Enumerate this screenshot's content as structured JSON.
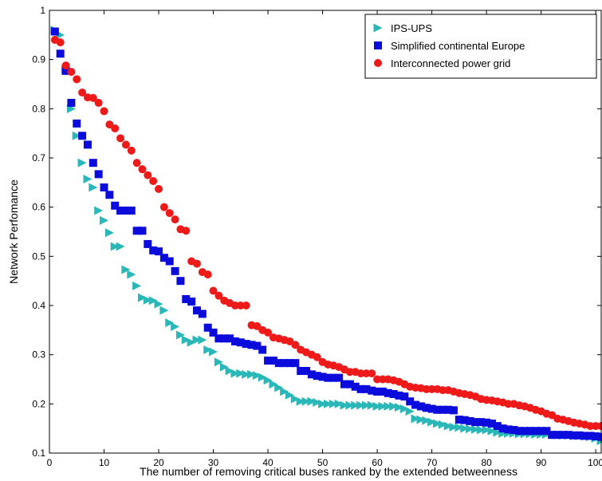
{
  "chart_data": {
    "type": "scatter",
    "title": "",
    "xlabel": "The number of removing critical buses ranked by the extended betweenness",
    "ylabel": "Network Perfomance",
    "xlim": [
      0,
      101
    ],
    "ylim": [
      0.1,
      1.0
    ],
    "xticks": [
      0,
      10,
      20,
      30,
      40,
      50,
      60,
      70,
      80,
      90,
      100
    ],
    "yticks": [
      0.1,
      0.2,
      0.3,
      0.4,
      0.5,
      0.6,
      0.7,
      0.8,
      0.9,
      1.0
    ],
    "xtick_labels": [
      "0",
      "10",
      "20",
      "30",
      "40",
      "50",
      "60",
      "70",
      "80",
      "90",
      "100"
    ],
    "ytick_labels": [
      "0.1",
      "0.2",
      "0.3",
      "0.4",
      "0.5",
      "0.6",
      "0.7",
      "0.8",
      "0.9",
      "1"
    ],
    "grid": false,
    "legend_position": "top-right",
    "series": [
      {
        "name": "IPS-UPS",
        "marker": "triangle-right",
        "color": "#2ab7b7",
        "x": [
          1,
          2,
          3,
          4,
          5,
          6,
          7,
          8,
          9,
          10,
          11,
          12,
          13,
          14,
          15,
          16,
          17,
          18,
          19,
          20,
          21,
          22,
          23,
          24,
          25,
          26,
          27,
          28,
          29,
          30,
          31,
          32,
          33,
          34,
          35,
          36,
          37,
          38,
          39,
          40,
          41,
          42,
          43,
          44,
          45,
          46,
          47,
          48,
          49,
          50,
          51,
          52,
          53,
          54,
          55,
          56,
          57,
          58,
          59,
          60,
          61,
          62,
          63,
          64,
          65,
          66,
          67,
          68,
          69,
          70,
          71,
          72,
          73,
          74,
          75,
          76,
          77,
          78,
          79,
          80,
          81,
          82,
          83,
          84,
          85,
          86,
          87,
          88,
          89,
          90,
          91,
          92,
          93,
          94,
          95,
          96,
          97,
          98,
          99,
          100,
          101
        ],
        "y": [
          0.96,
          0.95,
          0.88,
          0.8,
          0.745,
          0.69,
          0.657,
          0.64,
          0.593,
          0.573,
          0.548,
          0.52,
          0.52,
          0.473,
          0.463,
          0.44,
          0.416,
          0.411,
          0.41,
          0.403,
          0.39,
          0.365,
          0.357,
          0.34,
          0.33,
          0.325,
          0.33,
          0.33,
          0.31,
          0.306,
          0.285,
          0.275,
          0.267,
          0.262,
          0.262,
          0.26,
          0.26,
          0.258,
          0.254,
          0.248,
          0.24,
          0.233,
          0.225,
          0.218,
          0.21,
          0.205,
          0.205,
          0.205,
          0.203,
          0.2,
          0.2,
          0.2,
          0.2,
          0.197,
          0.197,
          0.197,
          0.197,
          0.197,
          0.197,
          0.195,
          0.195,
          0.195,
          0.195,
          0.193,
          0.19,
          0.185,
          0.17,
          0.168,
          0.166,
          0.163,
          0.16,
          0.158,
          0.155,
          0.153,
          0.152,
          0.15,
          0.149,
          0.148,
          0.147,
          0.147,
          0.145,
          0.142,
          0.14,
          0.14,
          0.14,
          0.139,
          0.139,
          0.139,
          0.138,
          0.138,
          0.138,
          0.138,
          0.137,
          0.136,
          0.136,
          0.135,
          0.135,
          0.134,
          0.133,
          0.13,
          0.125
        ]
      },
      {
        "name": "Simplified continental Europe",
        "marker": "square",
        "color": "#0b0bdc",
        "x": [
          1,
          2,
          3,
          4,
          5,
          6,
          7,
          8,
          9,
          10,
          11,
          12,
          13,
          14,
          15,
          16,
          17,
          18,
          19,
          20,
          21,
          22,
          23,
          24,
          25,
          26,
          27,
          28,
          29,
          30,
          31,
          32,
          33,
          34,
          35,
          36,
          37,
          38,
          39,
          40,
          41,
          42,
          43,
          44,
          45,
          46,
          47,
          48,
          49,
          50,
          51,
          52,
          53,
          54,
          55,
          56,
          57,
          58,
          59,
          60,
          61,
          62,
          63,
          64,
          65,
          66,
          67,
          68,
          69,
          70,
          71,
          72,
          73,
          74,
          75,
          76,
          77,
          78,
          79,
          80,
          81,
          82,
          83,
          84,
          85,
          86,
          87,
          88,
          89,
          90,
          91,
          92,
          93,
          94,
          95,
          96,
          97,
          98,
          99,
          100,
          101
        ],
        "y": [
          0.957,
          0.912,
          0.877,
          0.812,
          0.77,
          0.745,
          0.727,
          0.69,
          0.667,
          0.64,
          0.625,
          0.603,
          0.593,
          0.593,
          0.593,
          0.552,
          0.552,
          0.525,
          0.512,
          0.51,
          0.497,
          0.49,
          0.47,
          0.45,
          0.413,
          0.408,
          0.39,
          0.383,
          0.355,
          0.345,
          0.333,
          0.333,
          0.333,
          0.327,
          0.325,
          0.322,
          0.32,
          0.318,
          0.31,
          0.288,
          0.288,
          0.283,
          0.283,
          0.283,
          0.283,
          0.267,
          0.267,
          0.26,
          0.257,
          0.255,
          0.253,
          0.253,
          0.253,
          0.24,
          0.24,
          0.235,
          0.23,
          0.23,
          0.227,
          0.225,
          0.225,
          0.222,
          0.22,
          0.217,
          0.215,
          0.205,
          0.198,
          0.195,
          0.192,
          0.19,
          0.188,
          0.188,
          0.188,
          0.187,
          0.168,
          0.167,
          0.165,
          0.163,
          0.163,
          0.162,
          0.16,
          0.155,
          0.15,
          0.148,
          0.147,
          0.145,
          0.145,
          0.145,
          0.145,
          0.145,
          0.145,
          0.137,
          0.137,
          0.137,
          0.137,
          0.136,
          0.136,
          0.135,
          0.135,
          0.134,
          0.133
        ]
      },
      {
        "name": "Interconnected power grid",
        "marker": "circle",
        "color": "#ee1a1a",
        "x": [
          1,
          2,
          3,
          4,
          5,
          6,
          7,
          8,
          9,
          10,
          11,
          12,
          13,
          14,
          15,
          16,
          17,
          18,
          19,
          20,
          21,
          22,
          23,
          24,
          25,
          26,
          27,
          28,
          29,
          30,
          31,
          32,
          33,
          34,
          35,
          36,
          37,
          38,
          39,
          40,
          41,
          42,
          43,
          44,
          45,
          46,
          47,
          48,
          49,
          50,
          51,
          52,
          53,
          54,
          55,
          56,
          57,
          58,
          59,
          60,
          61,
          62,
          63,
          64,
          65,
          66,
          67,
          68,
          69,
          70,
          71,
          72,
          73,
          74,
          75,
          76,
          77,
          78,
          79,
          80,
          81,
          82,
          83,
          84,
          85,
          86,
          87,
          88,
          89,
          90,
          91,
          92,
          93,
          94,
          95,
          96,
          97,
          98,
          99,
          100,
          101
        ],
        "y": [
          0.94,
          0.935,
          0.888,
          0.875,
          0.86,
          0.833,
          0.823,
          0.822,
          0.812,
          0.795,
          0.768,
          0.76,
          0.74,
          0.727,
          0.715,
          0.69,
          0.677,
          0.665,
          0.653,
          0.637,
          0.6,
          0.588,
          0.575,
          0.555,
          0.552,
          0.49,
          0.485,
          0.468,
          0.463,
          0.43,
          0.42,
          0.41,
          0.405,
          0.4,
          0.4,
          0.4,
          0.36,
          0.358,
          0.35,
          0.345,
          0.335,
          0.333,
          0.33,
          0.327,
          0.32,
          0.31,
          0.305,
          0.3,
          0.295,
          0.285,
          0.28,
          0.278,
          0.275,
          0.27,
          0.265,
          0.265,
          0.262,
          0.262,
          0.262,
          0.25,
          0.25,
          0.25,
          0.248,
          0.245,
          0.24,
          0.235,
          0.233,
          0.232,
          0.23,
          0.23,
          0.23,
          0.228,
          0.228,
          0.225,
          0.222,
          0.22,
          0.218,
          0.215,
          0.21,
          0.208,
          0.207,
          0.205,
          0.203,
          0.2,
          0.2,
          0.197,
          0.195,
          0.192,
          0.188,
          0.185,
          0.18,
          0.177,
          0.17,
          0.168,
          0.165,
          0.162,
          0.16,
          0.158,
          0.155,
          0.155,
          0.155
        ]
      }
    ]
  }
}
